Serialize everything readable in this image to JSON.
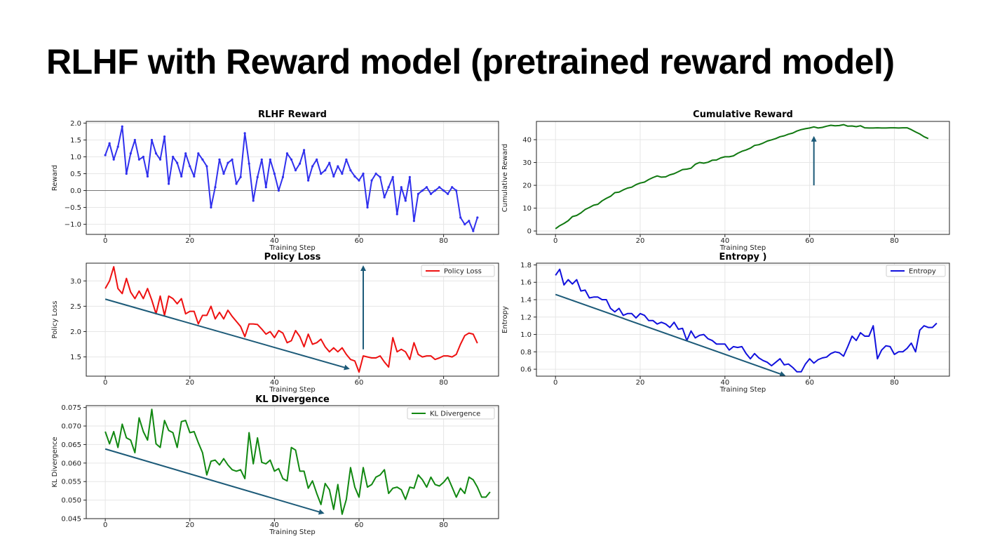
{
  "slide": {
    "title": "RLHF with Reward model (pretrained reward model)"
  },
  "chart_data": [
    {
      "id": "reward",
      "type": "line",
      "title": "RLHF Reward",
      "xlabel": "Training Step",
      "ylabel": "Reward",
      "xlim": [
        -4.5,
        93
      ],
      "ylim": [
        -1.3,
        2.05
      ],
      "xticks": [
        0,
        20,
        40,
        60,
        80
      ],
      "yticks": [
        -1.0,
        -0.5,
        0.0,
        0.5,
        1.0,
        1.5,
        2.0
      ],
      "ytick_labels": [
        "−1.0",
        "−0.5",
        "0.0",
        "0.5",
        "1.0",
        "1.5",
        "2.0"
      ],
      "grid": true,
      "markers": true,
      "zero_line": true,
      "color": "#3030ee",
      "series": [
        {
          "values": [
            1.05,
            1.4,
            0.92,
            1.3,
            1.9,
            0.5,
            1.1,
            1.5,
            0.92,
            1.0,
            0.42,
            1.5,
            1.1,
            0.92,
            1.6,
            0.2,
            1.0,
            0.82,
            0.42,
            1.1,
            0.72,
            0.42,
            1.1,
            0.92,
            0.72,
            -0.5,
            0.1,
            0.92,
            0.5,
            0.82,
            0.92,
            0.2,
            0.4,
            1.7,
            0.8,
            -0.3,
            0.4,
            0.92,
            0.1,
            0.92,
            0.5,
            0.0,
            0.4,
            1.1,
            0.92,
            0.6,
            0.8,
            1.2,
            0.3,
            0.72,
            0.92,
            0.5,
            0.6,
            0.82,
            0.42,
            0.72,
            0.5,
            0.92,
            0.6,
            0.42,
            0.3,
            0.5,
            -0.5,
            0.3,
            0.5,
            0.4,
            -0.2,
            0.1,
            0.4,
            -0.7,
            0.1,
            -0.3,
            0.4,
            -0.9,
            -0.1,
            0.0,
            0.1,
            -0.1,
            0.0,
            0.1,
            0.0,
            -0.1,
            0.1,
            0.0,
            -0.8,
            -1.0,
            -0.9,
            -1.2,
            -0.8
          ]
        }
      ]
    },
    {
      "id": "cumulative",
      "type": "line",
      "title": "Cumulative Reward",
      "xlabel": "Training Step",
      "ylabel": "Cumulative Reward",
      "xlim": [
        -4.5,
        93
      ],
      "ylim": [
        -1.5,
        48
      ],
      "xticks": [
        0,
        20,
        40,
        60,
        80
      ],
      "yticks": [
        0,
        10,
        20,
        30,
        40
      ],
      "grid": true,
      "color": "#107810",
      "series": [
        {
          "values": [
            1.0,
            2.3,
            3.3,
            4.5,
            6.3,
            6.8,
            7.9,
            9.4,
            10.3,
            11.3,
            11.7,
            13.2,
            14.3,
            15.2,
            16.8,
            17.0,
            18.0,
            18.8,
            19.2,
            20.3,
            21.0,
            21.4,
            22.5,
            23.4,
            24.1,
            23.6,
            23.7,
            24.6,
            25.1,
            26.0,
            26.9,
            27.1,
            27.5,
            29.2,
            30.0,
            29.7,
            30.1,
            31.0,
            31.1,
            32.0,
            32.5,
            32.5,
            32.9,
            34.0,
            34.9,
            35.5,
            36.3,
            37.5,
            37.8,
            38.5,
            39.4,
            39.9,
            40.5,
            41.3,
            41.7,
            42.4,
            42.9,
            43.8,
            44.4,
            44.8,
            45.1,
            45.6,
            45.1,
            45.4,
            45.9,
            46.3,
            46.1,
            46.2,
            46.6,
            45.9,
            46.0,
            45.7,
            46.1,
            45.2,
            45.1,
            45.1,
            45.2,
            45.1,
            45.1,
            45.2,
            45.2,
            45.1,
            45.2,
            45.2,
            44.4,
            43.4,
            42.5,
            41.3,
            40.5
          ]
        }
      ],
      "annotations": [
        {
          "type": "arrow",
          "from": [
            61,
            20
          ],
          "to": [
            61,
            41
          ]
        }
      ]
    },
    {
      "id": "policy",
      "type": "line",
      "title": "Policy Loss",
      "xlabel": "Training Step",
      "ylabel": "Policy Loss",
      "xlim": [
        -4.5,
        93
      ],
      "ylim": [
        1.12,
        3.35
      ],
      "xticks": [
        0,
        20,
        40,
        60,
        80
      ],
      "yticks": [
        1.5,
        2.0,
        2.5,
        3.0
      ],
      "grid": true,
      "color": "#ee1111",
      "legend": {
        "position": "upper right",
        "entries": [
          {
            "name": "Policy Loss",
            "color": "#ee1111"
          }
        ]
      },
      "series": [
        {
          "name": "Policy Loss",
          "values": [
            2.85,
            3.0,
            3.28,
            2.85,
            2.75,
            3.05,
            2.78,
            2.65,
            2.8,
            2.65,
            2.85,
            2.62,
            2.35,
            2.7,
            2.32,
            2.7,
            2.65,
            2.55,
            2.65,
            2.35,
            2.4,
            2.4,
            2.15,
            2.32,
            2.32,
            2.5,
            2.25,
            2.38,
            2.25,
            2.42,
            2.3,
            2.2,
            2.1,
            1.9,
            2.15,
            2.15,
            2.14,
            2.05,
            1.95,
            2.0,
            1.88,
            2.02,
            1.97,
            1.78,
            1.82,
            2.02,
            1.9,
            1.7,
            1.95,
            1.75,
            1.78,
            1.85,
            1.7,
            1.6,
            1.68,
            1.6,
            1.68,
            1.55,
            1.45,
            1.42,
            1.2,
            1.52,
            1.5,
            1.48,
            1.48,
            1.52,
            1.4,
            1.3,
            1.88,
            1.6,
            1.65,
            1.6,
            1.45,
            1.78,
            1.55,
            1.5,
            1.52,
            1.52,
            1.45,
            1.48,
            1.52,
            1.52,
            1.5,
            1.55,
            1.75,
            1.92,
            1.97,
            1.95,
            1.77
          ]
        }
      ],
      "annotations": [
        {
          "type": "arrow",
          "from": [
            0,
            2.64
          ],
          "to": [
            57.5,
            1.27
          ]
        },
        {
          "type": "arrow",
          "from": [
            61,
            1.65
          ],
          "to": [
            61,
            3.28
          ]
        }
      ]
    },
    {
      "id": "entropy",
      "type": "line",
      "title": "Entropy  )",
      "xlabel": "Training Step",
      "ylabel": "Entropy",
      "xlim": [
        -4.5,
        93
      ],
      "ylim": [
        0.52,
        1.82
      ],
      "xticks": [
        0,
        20,
        40,
        60,
        80
      ],
      "yticks": [
        0.6,
        0.8,
        1.0,
        1.2,
        1.4,
        1.6,
        1.8
      ],
      "grid": true,
      "color": "#1111dd",
      "legend": {
        "position": "upper right",
        "entries": [
          {
            "name": "Entropy",
            "color": "#1111dd"
          }
        ]
      },
      "series": [
        {
          "name": "Entropy",
          "values": [
            1.68,
            1.75,
            1.57,
            1.63,
            1.58,
            1.63,
            1.5,
            1.51,
            1.42,
            1.43,
            1.43,
            1.4,
            1.4,
            1.3,
            1.26,
            1.3,
            1.22,
            1.24,
            1.24,
            1.19,
            1.24,
            1.22,
            1.16,
            1.16,
            1.12,
            1.14,
            1.12,
            1.08,
            1.14,
            1.06,
            1.07,
            0.93,
            1.04,
            0.96,
            0.99,
            1.0,
            0.95,
            0.93,
            0.89,
            0.89,
            0.89,
            0.82,
            0.86,
            0.85,
            0.86,
            0.78,
            0.72,
            0.78,
            0.73,
            0.7,
            0.68,
            0.64,
            0.68,
            0.72,
            0.65,
            0.66,
            0.62,
            0.57,
            0.57,
            0.66,
            0.72,
            0.67,
            0.71,
            0.73,
            0.74,
            0.78,
            0.8,
            0.79,
            0.75,
            0.86,
            0.98,
            0.93,
            1.02,
            0.98,
            0.98,
            1.1,
            0.72,
            0.82,
            0.87,
            0.86,
            0.77,
            0.8,
            0.8,
            0.84,
            0.9,
            0.8,
            1.05,
            1.1,
            1.08,
            1.08,
            1.13
          ]
        }
      ],
      "annotations": [
        {
          "type": "arrow",
          "from": [
            0,
            1.46
          ],
          "to": [
            54,
            0.53
          ]
        }
      ]
    },
    {
      "id": "kl",
      "type": "line",
      "title": "KL Divergence",
      "xlabel": "Training Step",
      "ylabel": "KL Divergence",
      "xlim": [
        -4.5,
        93
      ],
      "ylim": [
        0.045,
        0.0755
      ],
      "xticks": [
        0,
        20,
        40,
        60,
        80
      ],
      "yticks": [
        0.045,
        0.05,
        0.055,
        0.06,
        0.065,
        0.07,
        0.075
      ],
      "ytick_labels": [
        "0.045",
        "0.050",
        "0.055",
        "0.060",
        "0.065",
        "0.070",
        "0.075"
      ],
      "grid": true,
      "color": "#118811",
      "legend": {
        "position": "upper right",
        "entries": [
          {
            "name": "KL Divergence",
            "color": "#118811"
          }
        ]
      },
      "series": [
        {
          "name": "KL Divergence",
          "values": [
            0.0685,
            0.0652,
            0.0685,
            0.0642,
            0.0705,
            0.0668,
            0.0662,
            0.0628,
            0.0722,
            0.0685,
            0.0662,
            0.0745,
            0.0652,
            0.0642,
            0.0715,
            0.0688,
            0.0682,
            0.0642,
            0.0712,
            0.0715,
            0.0682,
            0.0685,
            0.0655,
            0.0628,
            0.0568,
            0.0605,
            0.0608,
            0.0595,
            0.0612,
            0.0595,
            0.0582,
            0.0578,
            0.0582,
            0.0558,
            0.0682,
            0.0598,
            0.0668,
            0.0602,
            0.0598,
            0.0608,
            0.0578,
            0.0585,
            0.0558,
            0.0552,
            0.0642,
            0.0635,
            0.0578,
            0.0578,
            0.0532,
            0.0552,
            0.0518,
            0.0488,
            0.0545,
            0.0528,
            0.0475,
            0.0542,
            0.0462,
            0.0502,
            0.0588,
            0.0535,
            0.0508,
            0.0588,
            0.0535,
            0.0542,
            0.0562,
            0.0568,
            0.0582,
            0.0518,
            0.0532,
            0.0535,
            0.0528,
            0.0502,
            0.0535,
            0.0532,
            0.0568,
            0.0555,
            0.0535,
            0.0562,
            0.0542,
            0.0538,
            0.0548,
            0.0562,
            0.0535,
            0.0508,
            0.0532,
            0.0518,
            0.0562,
            0.0555,
            0.0535,
            0.0508,
            0.0508,
            0.0522
          ]
        }
      ],
      "annotations": [
        {
          "type": "arrow",
          "from": [
            0,
            0.0638
          ],
          "to": [
            51.5,
            0.0465
          ]
        }
      ]
    }
  ]
}
